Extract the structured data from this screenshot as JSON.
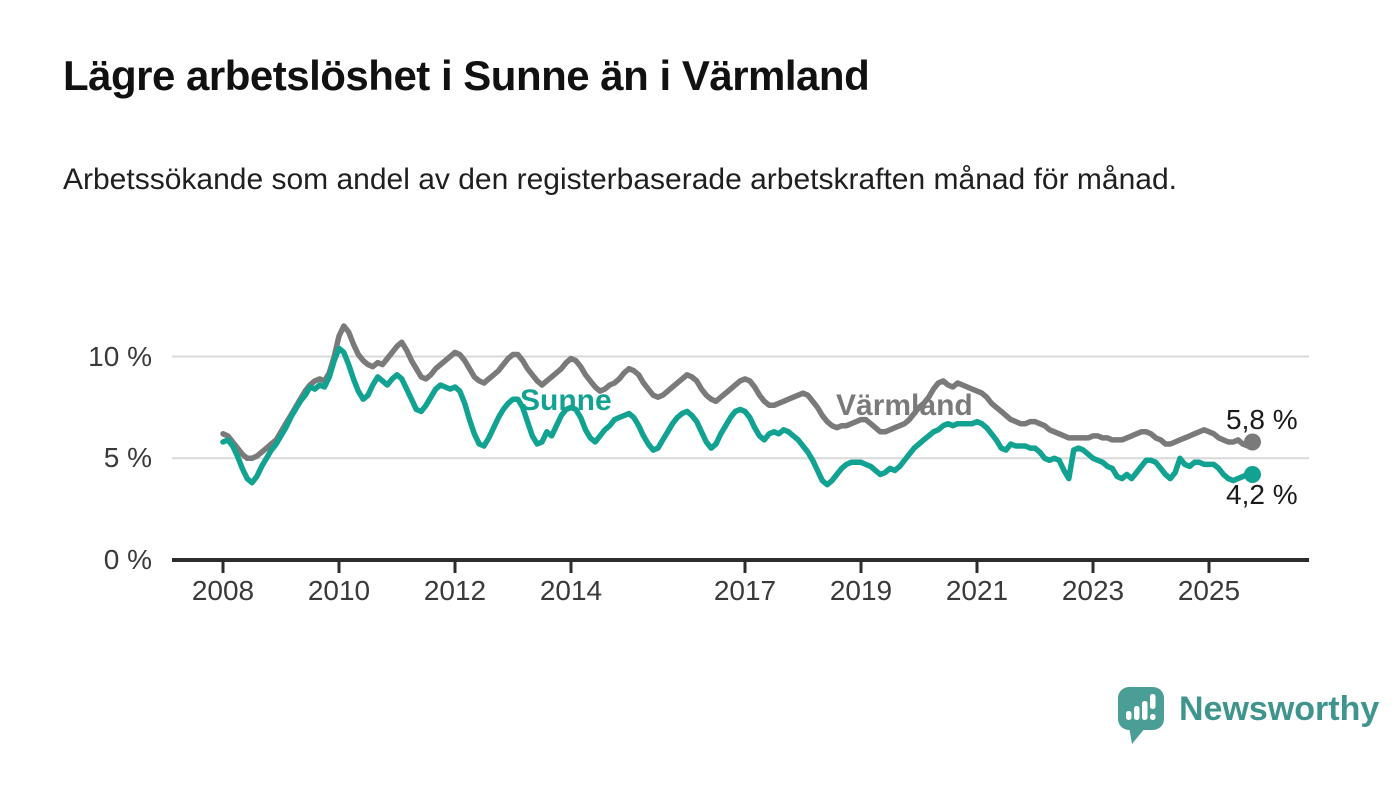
{
  "header": {
    "title": "Lägre arbetslöshet i Sunne än i Värmland",
    "subtitle": "Arbetssökande som andel av den registerbaserade arbetskraften månad för månad."
  },
  "footer": {
    "brand": "Newsworthy",
    "brand_color": "#3f958e",
    "icon_color": "#4a9e96"
  },
  "colors": {
    "axis": "#2d2d2d",
    "grid": "#d9d9d9",
    "text": "#3a3a3a"
  },
  "chart_data": {
    "type": "line",
    "title": "Lägre arbetslöshet i Sunne än i Värmland",
    "subtitle": "Arbetssökande som andel av den registerbaserade arbetskraften månad för månad.",
    "x_unit": "month",
    "x_start": "2008-01",
    "x_end": "2025-10",
    "x_tick_years": [
      2008,
      2010,
      2012,
      2014,
      2017,
      2019,
      2021,
      2023,
      2025
    ],
    "y_ticks": [
      {
        "value": 0,
        "label": "0 %"
      },
      {
        "value": 5,
        "label": "5 %"
      },
      {
        "value": 10,
        "label": "10 %"
      }
    ],
    "ylim": [
      0,
      12.2
    ],
    "grid": "horizontal",
    "legend_position": "inline-labels",
    "series": [
      {
        "name": "Värmland",
        "color": "#7a7a7a",
        "end_label": "5,8 %",
        "end_value": 5.8,
        "values": [
          6.2,
          6.1,
          5.8,
          5.5,
          5.2,
          5.0,
          5.0,
          5.1,
          5.3,
          5.5,
          5.7,
          5.9,
          6.3,
          6.7,
          7.1,
          7.5,
          7.9,
          8.3,
          8.6,
          8.8,
          8.9,
          8.8,
          9.2,
          10.0,
          11.0,
          11.5,
          11.2,
          10.6,
          10.1,
          9.8,
          9.6,
          9.5,
          9.7,
          9.6,
          9.9,
          10.2,
          10.5,
          10.7,
          10.3,
          9.8,
          9.4,
          9.0,
          8.9,
          9.1,
          9.4,
          9.6,
          9.8,
          10.0,
          10.2,
          10.1,
          9.8,
          9.4,
          9.0,
          8.8,
          8.7,
          8.9,
          9.1,
          9.3,
          9.6,
          9.9,
          10.1,
          10.1,
          9.8,
          9.4,
          9.1,
          8.8,
          8.6,
          8.8,
          9.0,
          9.2,
          9.4,
          9.7,
          9.9,
          9.8,
          9.5,
          9.1,
          8.8,
          8.5,
          8.3,
          8.4,
          8.6,
          8.7,
          8.9,
          9.2,
          9.4,
          9.3,
          9.1,
          8.7,
          8.4,
          8.1,
          8.0,
          8.1,
          8.3,
          8.5,
          8.7,
          8.9,
          9.1,
          9.0,
          8.8,
          8.4,
          8.1,
          7.9,
          7.8,
          8.0,
          8.2,
          8.4,
          8.6,
          8.8,
          8.9,
          8.8,
          8.5,
          8.1,
          7.8,
          7.6,
          7.6,
          7.7,
          7.8,
          7.9,
          8.0,
          8.1,
          8.2,
          8.1,
          7.8,
          7.5,
          7.1,
          6.8,
          6.6,
          6.5,
          6.6,
          6.6,
          6.7,
          6.8,
          6.9,
          6.9,
          6.7,
          6.5,
          6.3,
          6.3,
          6.4,
          6.5,
          6.6,
          6.7,
          6.9,
          7.2,
          7.5,
          7.7,
          8.0,
          8.4,
          8.7,
          8.8,
          8.6,
          8.5,
          8.7,
          8.6,
          8.5,
          8.4,
          8.3,
          8.2,
          8.0,
          7.7,
          7.5,
          7.3,
          7.1,
          6.9,
          6.8,
          6.7,
          6.7,
          6.8,
          6.8,
          6.7,
          6.6,
          6.4,
          6.3,
          6.2,
          6.1,
          6.0,
          6.0,
          6.0,
          6.0,
          6.0,
          6.1,
          6.1,
          6.0,
          6.0,
          5.9,
          5.9,
          5.9,
          6.0,
          6.1,
          6.2,
          6.3,
          6.3,
          6.2,
          6.0,
          5.9,
          5.7,
          5.7,
          5.8,
          5.9,
          6.0,
          6.1,
          6.2,
          6.3,
          6.4,
          6.3,
          6.2,
          6.0,
          5.9,
          5.8,
          5.8,
          5.9,
          5.7,
          5.6,
          5.8
        ]
      },
      {
        "name": "Sunne",
        "color": "#12a292",
        "end_label": "4,2 %",
        "end_value": 4.2,
        "values": [
          5.8,
          5.9,
          5.6,
          5.1,
          4.5,
          4.0,
          3.8,
          4.1,
          4.6,
          5.0,
          5.4,
          5.7,
          6.1,
          6.5,
          7.0,
          7.4,
          7.8,
          8.1,
          8.5,
          8.4,
          8.6,
          8.5,
          9.0,
          9.8,
          10.4,
          10.2,
          9.6,
          8.9,
          8.3,
          7.9,
          8.1,
          8.6,
          9.0,
          8.8,
          8.6,
          8.9,
          9.1,
          8.9,
          8.4,
          7.9,
          7.4,
          7.3,
          7.6,
          8.0,
          8.4,
          8.6,
          8.5,
          8.4,
          8.5,
          8.3,
          7.7,
          6.9,
          6.2,
          5.7,
          5.6,
          6.0,
          6.5,
          7.0,
          7.4,
          7.7,
          7.9,
          7.9,
          7.5,
          6.8,
          6.1,
          5.7,
          5.8,
          6.3,
          6.1,
          6.6,
          7.1,
          7.4,
          7.5,
          7.4,
          7.0,
          6.4,
          6.0,
          5.8,
          6.1,
          6.4,
          6.6,
          6.9,
          7.0,
          7.1,
          7.2,
          7.0,
          6.6,
          6.1,
          5.7,
          5.4,
          5.5,
          5.9,
          6.3,
          6.7,
          7.0,
          7.2,
          7.3,
          7.1,
          6.8,
          6.3,
          5.8,
          5.5,
          5.7,
          6.2,
          6.6,
          7.0,
          7.3,
          7.4,
          7.3,
          7.0,
          6.5,
          6.1,
          5.9,
          6.2,
          6.3,
          6.2,
          6.4,
          6.3,
          6.1,
          5.9,
          5.6,
          5.3,
          4.9,
          4.4,
          3.9,
          3.7,
          3.9,
          4.2,
          4.5,
          4.7,
          4.8,
          4.8,
          4.8,
          4.7,
          4.6,
          4.4,
          4.2,
          4.3,
          4.5,
          4.4,
          4.6,
          4.9,
          5.2,
          5.5,
          5.7,
          5.9,
          6.1,
          6.3,
          6.4,
          6.6,
          6.7,
          6.6,
          6.7,
          6.7,
          6.7,
          6.7,
          6.8,
          6.7,
          6.5,
          6.2,
          5.9,
          5.5,
          5.4,
          5.7,
          5.6,
          5.6,
          5.6,
          5.5,
          5.5,
          5.3,
          5.0,
          4.9,
          5.0,
          4.9,
          4.4,
          4.0,
          5.4,
          5.5,
          5.4,
          5.2,
          5.0,
          4.9,
          4.8,
          4.6,
          4.5,
          4.1,
          4.0,
          4.2,
          4.0,
          4.3,
          4.6,
          4.9,
          4.9,
          4.8,
          4.5,
          4.2,
          4.0,
          4.3,
          5.0,
          4.7,
          4.6,
          4.8,
          4.8,
          4.7,
          4.7,
          4.7,
          4.5,
          4.2,
          4.0,
          3.9,
          4.0,
          4.1,
          4.2,
          4.2
        ]
      }
    ]
  }
}
